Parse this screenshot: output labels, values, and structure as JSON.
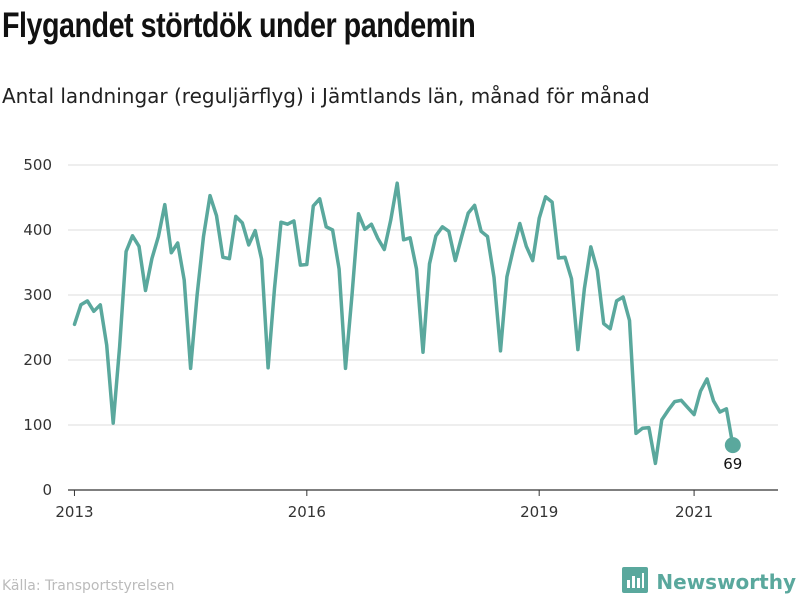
{
  "title": "Flygandet störtdök under pandemin",
  "subtitle": "Antal landningar (reguljärflyg) i Jämtlands län, månad för månad",
  "source": "Källa: Transportstyrelsen",
  "brand": {
    "name": "Newsworthy",
    "icon": "newsworthy-logo-icon",
    "color": "#5aa89d"
  },
  "colors": {
    "line": "#5aa89d",
    "grid": "#dddddd",
    "axis": "#333333"
  },
  "chart_data": {
    "type": "line",
    "title": "Flygandet störtdök under pandemin",
    "subtitle": "Antal landningar (reguljärflyg) i Jämtlands län, månad för månad",
    "xlabel": "",
    "ylabel": "",
    "ylim": [
      0,
      500
    ],
    "y_ticks": [
      0,
      100,
      200,
      300,
      400,
      500
    ],
    "x_ticks": [
      {
        "date": "2013-01",
        "label": "2013"
      },
      {
        "date": "2016-01",
        "label": "2016"
      },
      {
        "date": "2019-01",
        "label": "2019"
      },
      {
        "date": "2021-01",
        "label": "2021"
      }
    ],
    "grid": "horizontal",
    "series": [
      {
        "color": "#5aa89d",
        "points": [
          [
            "2013-01",
            255
          ],
          [
            "2013-02",
            285
          ],
          [
            "2013-03",
            291
          ],
          [
            "2013-04",
            275
          ],
          [
            "2013-05",
            285
          ],
          [
            "2013-06",
            223
          ],
          [
            "2013-07",
            103
          ],
          [
            "2013-08",
            220
          ],
          [
            "2013-09",
            367
          ],
          [
            "2013-10",
            391
          ],
          [
            "2013-11",
            375
          ],
          [
            "2013-12",
            307
          ],
          [
            "2014-01",
            356
          ],
          [
            "2014-02",
            390
          ],
          [
            "2014-03",
            439
          ],
          [
            "2014-04",
            365
          ],
          [
            "2014-05",
            380
          ],
          [
            "2014-06",
            323
          ],
          [
            "2014-07",
            187
          ],
          [
            "2014-08",
            300
          ],
          [
            "2014-09",
            390
          ],
          [
            "2014-10",
            453
          ],
          [
            "2014-11",
            422
          ],
          [
            "2014-12",
            358
          ],
          [
            "2015-01",
            356
          ],
          [
            "2015-02",
            421
          ],
          [
            "2015-03",
            411
          ],
          [
            "2015-04",
            377
          ],
          [
            "2015-05",
            399
          ],
          [
            "2015-06",
            355
          ],
          [
            "2015-07",
            188
          ],
          [
            "2015-08",
            310
          ],
          [
            "2015-09",
            412
          ],
          [
            "2015-10",
            409
          ],
          [
            "2015-11",
            414
          ],
          [
            "2015-12",
            346
          ],
          [
            "2016-01",
            347
          ],
          [
            "2016-02",
            437
          ],
          [
            "2016-03",
            448
          ],
          [
            "2016-04",
            405
          ],
          [
            "2016-05",
            400
          ],
          [
            "2016-06",
            340
          ],
          [
            "2016-07",
            187
          ],
          [
            "2016-08",
            300
          ],
          [
            "2016-09",
            425
          ],
          [
            "2016-10",
            401
          ],
          [
            "2016-11",
            409
          ],
          [
            "2016-12",
            387
          ],
          [
            "2017-01",
            370
          ],
          [
            "2017-02",
            415
          ],
          [
            "2017-03",
            472
          ],
          [
            "2017-04",
            385
          ],
          [
            "2017-05",
            388
          ],
          [
            "2017-06",
            340
          ],
          [
            "2017-07",
            212
          ],
          [
            "2017-08",
            348
          ],
          [
            "2017-09",
            391
          ],
          [
            "2017-10",
            405
          ],
          [
            "2017-11",
            398
          ],
          [
            "2017-12",
            353
          ],
          [
            "2018-01",
            390
          ],
          [
            "2018-02",
            426
          ],
          [
            "2018-03",
            438
          ],
          [
            "2018-04",
            398
          ],
          [
            "2018-05",
            390
          ],
          [
            "2018-06",
            327
          ],
          [
            "2018-07",
            214
          ],
          [
            "2018-08",
            328
          ],
          [
            "2018-09",
            371
          ],
          [
            "2018-10",
            410
          ],
          [
            "2018-11",
            375
          ],
          [
            "2018-12",
            353
          ],
          [
            "2019-01",
            418
          ],
          [
            "2019-02",
            451
          ],
          [
            "2019-03",
            443
          ],
          [
            "2019-04",
            357
          ],
          [
            "2019-05",
            358
          ],
          [
            "2019-06",
            325
          ],
          [
            "2019-07",
            216
          ],
          [
            "2019-08",
            310
          ],
          [
            "2019-09",
            374
          ],
          [
            "2019-10",
            338
          ],
          [
            "2019-11",
            256
          ],
          [
            "2019-12",
            248
          ],
          [
            "2020-01",
            291
          ],
          [
            "2020-02",
            297
          ],
          [
            "2020-03",
            261
          ],
          [
            "2020-04",
            87
          ],
          [
            "2020-05",
            95
          ],
          [
            "2020-06",
            96
          ],
          [
            "2020-07",
            41
          ],
          [
            "2020-08",
            108
          ],
          [
            "2020-09",
            123
          ],
          [
            "2020-10",
            136
          ],
          [
            "2020-11",
            138
          ],
          [
            "2020-12",
            127
          ],
          [
            "2021-01",
            116
          ],
          [
            "2021-02",
            152
          ],
          [
            "2021-03",
            171
          ],
          [
            "2021-04",
            137
          ],
          [
            "2021-05",
            120
          ],
          [
            "2021-06",
            125
          ],
          [
            "2021-07",
            69
          ]
        ]
      }
    ],
    "end_label": {
      "date": "2021-07",
      "value": 69,
      "text": "69"
    }
  }
}
